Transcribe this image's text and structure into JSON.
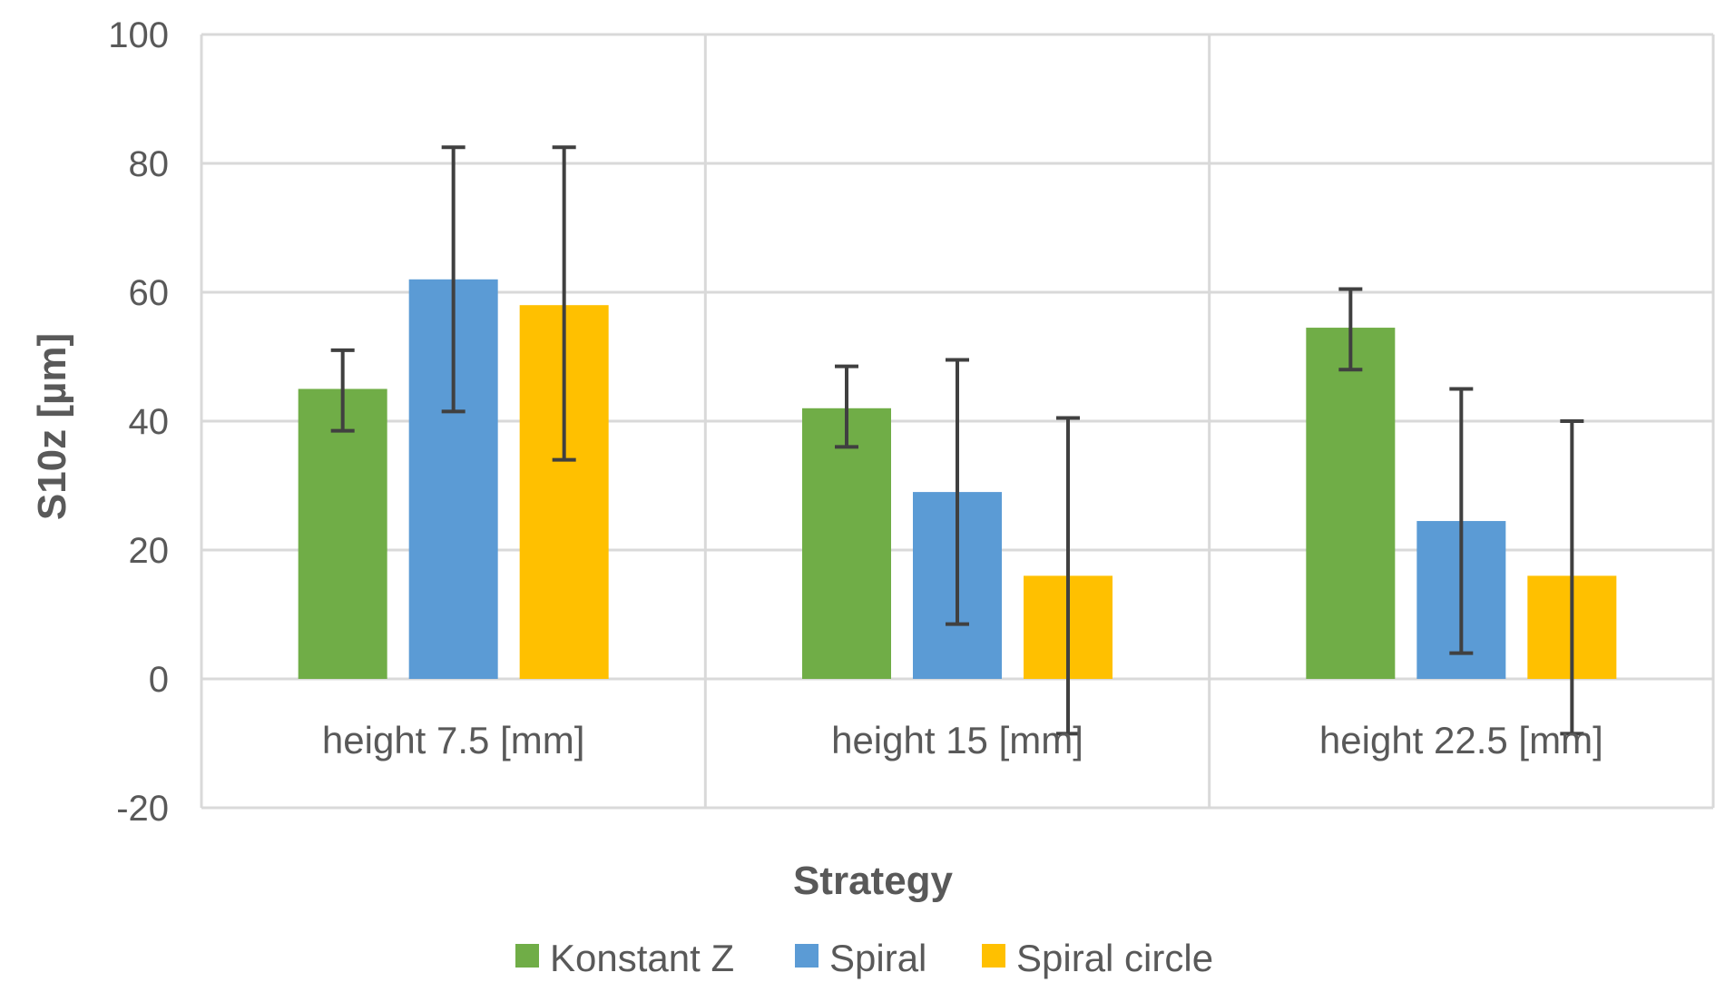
{
  "chart_data": {
    "type": "bar",
    "title": "",
    "xlabel": "Strategy",
    "ylabel": "S10z [µm]",
    "ylim": [
      -20,
      100
    ],
    "yticks": [
      -20,
      0,
      20,
      40,
      60,
      80,
      100
    ],
    "grid": true,
    "legend_position": "bottom",
    "categories": [
      "height 7.5 [mm]",
      "height 15 [mm]",
      "height 22.5 [mm]"
    ],
    "series": [
      {
        "name": "Konstant Z",
        "color": "#70AD47",
        "values": [
          45,
          42,
          54.5
        ],
        "error_low": [
          38.5,
          36,
          48
        ],
        "error_high": [
          51,
          48.5,
          60.5
        ]
      },
      {
        "name": "Spiral",
        "color": "#5B9BD5",
        "values": [
          62,
          29,
          24.5
        ],
        "error_low": [
          41.5,
          8.5,
          4
        ],
        "error_high": [
          82.5,
          49.5,
          45
        ]
      },
      {
        "name": "Spiral circle",
        "color": "#FFC000",
        "values": [
          58,
          16,
          16
        ],
        "error_low": [
          34,
          -8.5,
          -8.5
        ],
        "error_high": [
          82.5,
          40.5,
          40
        ]
      }
    ]
  }
}
